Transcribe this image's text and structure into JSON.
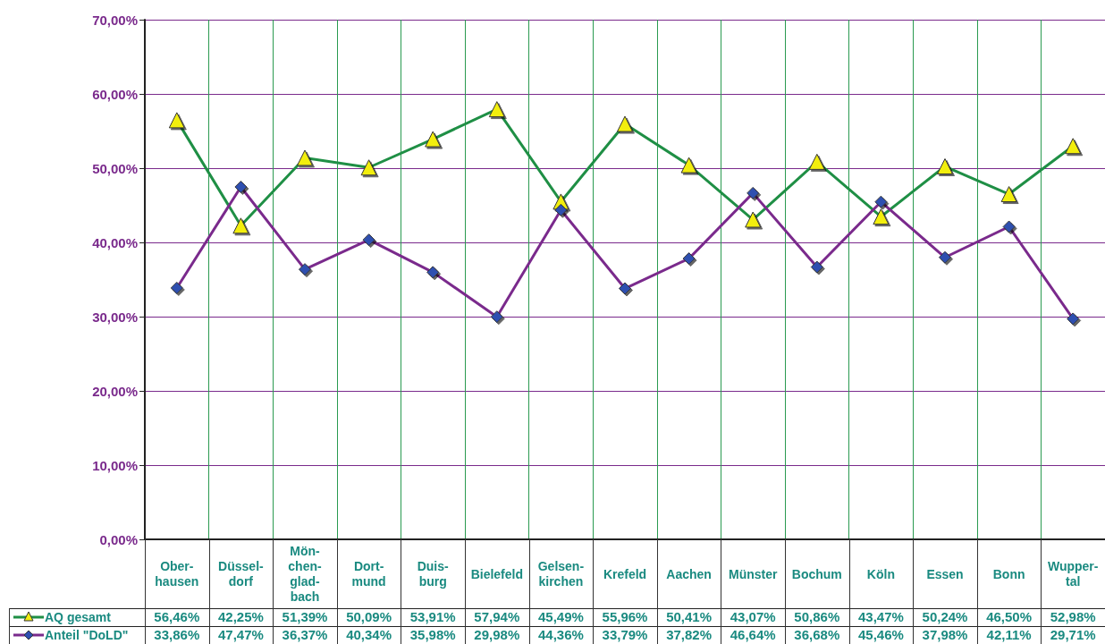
{
  "chart_data": {
    "type": "line",
    "categories": [
      "Ober-\nhausen",
      "Düssel-\ndorf",
      "Mön-\nchen-\nglad-\nbach",
      "Dort-\nmund",
      "Duis-\nburg",
      "Bielefeld",
      "Gelsen-\nkirchen",
      "Krefeld",
      "Aachen",
      "Münster",
      "Bochum",
      "Köln",
      "Essen",
      "Bonn",
      "Wupper-\ntal"
    ],
    "series": [
      {
        "name": "AQ gesamt",
        "color": "#1f8f45",
        "marker": "triangle",
        "values": [
          56.46,
          42.25,
          51.39,
          50.09,
          53.91,
          57.94,
          45.49,
          55.96,
          50.41,
          43.07,
          50.86,
          43.47,
          50.24,
          46.5,
          52.98
        ],
        "value_labels": [
          "56,46%",
          "42,25%",
          "51,39%",
          "50,09%",
          "53,91%",
          "57,94%",
          "45,49%",
          "55,96%",
          "50,41%",
          "43,07%",
          "50,86%",
          "43,47%",
          "50,24%",
          "46,50%",
          "52,98%"
        ]
      },
      {
        "name": "Anteil \"DoLD\"",
        "color": "#7a2a8c",
        "marker": "diamond",
        "values": [
          33.86,
          47.47,
          36.37,
          40.34,
          35.98,
          29.98,
          44.36,
          33.79,
          37.82,
          46.64,
          36.68,
          45.46,
          37.98,
          42.11,
          29.71
        ],
        "value_labels": [
          "33,86%",
          "47,47%",
          "36,37%",
          "40,34%",
          "35,98%",
          "29,98%",
          "44,36%",
          "33,79%",
          "37,82%",
          "46,64%",
          "36,68%",
          "45,46%",
          "37,98%",
          "42,11%",
          "29,71%"
        ]
      }
    ],
    "ylim": [
      0,
      70
    ],
    "yticks": [
      {
        "value": 0,
        "label": "0,00%"
      },
      {
        "value": 10,
        "label": "10,00%"
      },
      {
        "value": 20,
        "label": "20,00%"
      },
      {
        "value": 30,
        "label": "30,00%"
      },
      {
        "value": 40,
        "label": "40,00%"
      },
      {
        "value": 50,
        "label": "50,00%"
      },
      {
        "value": 60,
        "label": "60,00%"
      },
      {
        "value": 70,
        "label": "70,00%"
      }
    ],
    "grid": true,
    "legend": "bottom left"
  }
}
